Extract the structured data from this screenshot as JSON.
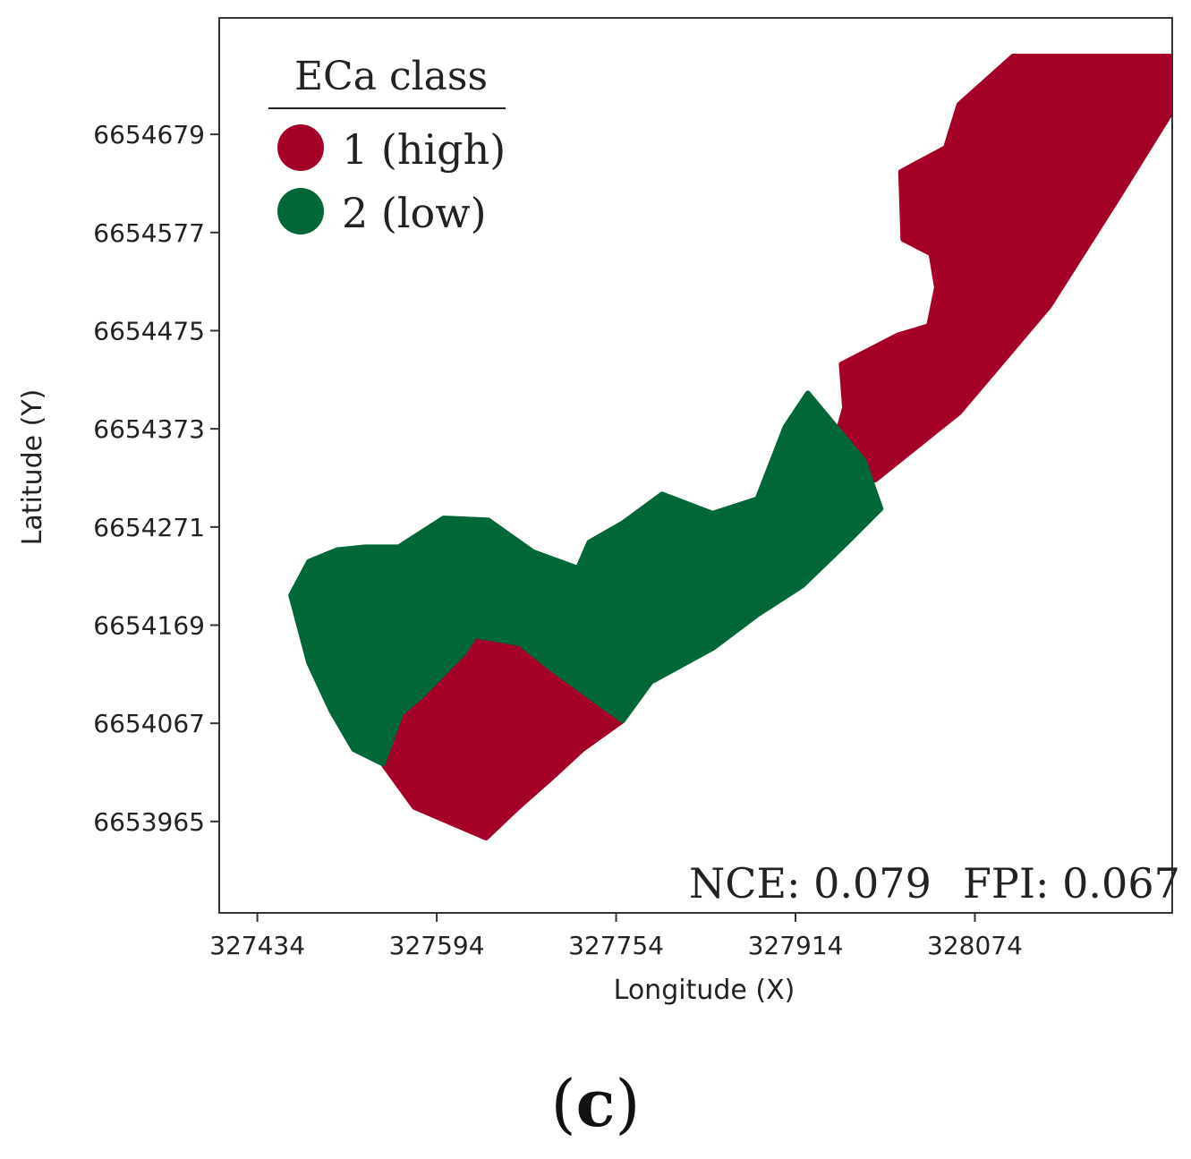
{
  "chart_data": {
    "type": "scatter",
    "xlabel": "Longitude (X)",
    "ylabel": "Latitude  (Y)",
    "x_ticks": [
      327434,
      327594,
      327754,
      327914,
      328074
    ],
    "y_ticks": [
      6654679,
      6654577,
      6654475,
      6654373,
      6654271,
      6654169,
      6654067,
      6653965
    ],
    "xlim": [
      327400,
      328250
    ],
    "ylim": [
      6653870,
      6654800
    ],
    "legend": {
      "title": "ECa class",
      "placement": "top-left",
      "entries": [
        {
          "label": "1 (high)",
          "color": "#a50026"
        },
        {
          "label": "2 (low)",
          "color": "#006837"
        }
      ]
    },
    "series": [
      {
        "name": "1 (high)",
        "color": "#a50026",
        "polygons": [
          [
            [
              327946,
              6654345
            ],
            [
              327958,
              6654395
            ],
            [
              327955,
              6654440
            ],
            [
              328005,
              6654470
            ],
            [
              328033,
              6654480
            ],
            [
              328040,
              6654520
            ],
            [
              328035,
              6654555
            ],
            [
              328010,
              6654570
            ],
            [
              328008,
              6654640
            ],
            [
              328048,
              6654665
            ],
            [
              328060,
              6654710
            ],
            [
              328108,
              6654760
            ],
            [
              328248,
              6654760
            ],
            [
              328248,
              6654700
            ],
            [
              328200,
              6654610
            ],
            [
              328140,
              6654500
            ],
            [
              328060,
              6654390
            ],
            [
              327985,
              6654320
            ],
            [
              327955,
              6654320
            ]
          ],
          [
            [
              327960,
              6654390
            ],
            [
              327980,
              6654440
            ],
            [
              328010,
              6654460
            ],
            [
              328025,
              6654410
            ],
            [
              328012,
              6654385
            ],
            [
              327990,
              6654375
            ]
          ],
          [
            [
              327638,
              6653948
            ],
            [
              327574,
              6653980
            ],
            [
              327546,
              6654025
            ],
            [
              327562,
              6654077
            ],
            [
              327580,
              6654095
            ],
            [
              327618,
              6654140
            ],
            [
              327628,
              6654158
            ],
            [
              327668,
              6654150
            ],
            [
              327695,
              6654125
            ],
            [
              327742,
              6654085
            ],
            [
              327760,
              6654070
            ],
            [
              327724,
              6654040
            ],
            [
              327696,
              6654010
            ],
            [
              327665,
              6653978
            ]
          ]
        ]
      },
      {
        "name": "2 (low)",
        "color": "#006837",
        "polygons": [
          [
            [
              327464,
              6654200
            ],
            [
              327480,
              6654235
            ],
            [
              327505,
              6654247
            ],
            [
              327530,
              6654250
            ],
            [
              327560,
              6654250
            ],
            [
              327600,
              6654280
            ],
            [
              327640,
              6654278
            ],
            [
              327680,
              6654245
            ],
            [
              327720,
              6654228
            ],
            [
              327730,
              6654255
            ],
            [
              327760,
              6654275
            ],
            [
              327795,
              6654305
            ],
            [
              327840,
              6654285
            ],
            [
              327880,
              6654300
            ],
            [
              327905,
              6654375
            ],
            [
              327925,
              6654410
            ],
            [
              327950,
              6654375
            ],
            [
              327975,
              6654340
            ],
            [
              327990,
              6654290
            ],
            [
              327960,
              6654255
            ],
            [
              327920,
              6654210
            ],
            [
              327880,
              6654180
            ],
            [
              327840,
              6654145
            ],
            [
              327785,
              6654110
            ],
            [
              327760,
              6654070
            ],
            [
              327742,
              6654085
            ],
            [
              327695,
              6654125
            ],
            [
              327668,
              6654150
            ],
            [
              327628,
              6654158
            ],
            [
              327618,
              6654140
            ],
            [
              327580,
              6654095
            ],
            [
              327562,
              6654077
            ],
            [
              327546,
              6654025
            ],
            [
              327520,
              6654040
            ],
            [
              327500,
              6654080
            ],
            [
              327480,
              6654130
            ]
          ]
        ]
      }
    ],
    "annotations": [
      {
        "label": "NCE: 0.079"
      },
      {
        "label": "FPI: 0.067"
      }
    ]
  },
  "panel_label": "(c)",
  "panel_label_parts": {
    "open": "(",
    "letter": "c",
    "close": ")"
  }
}
